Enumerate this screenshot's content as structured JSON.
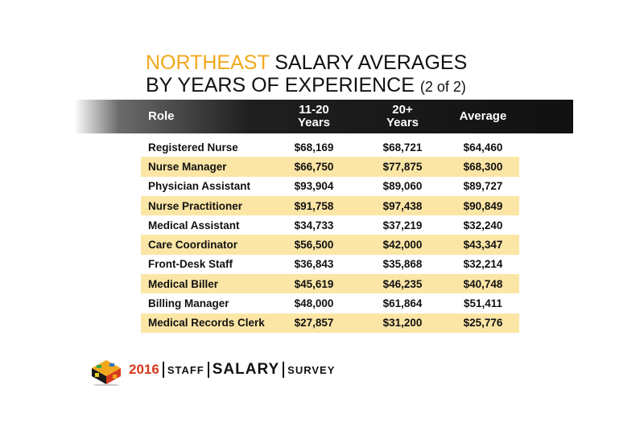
{
  "title": {
    "highlight": "NORTHEAST",
    "line1_rest": "SALARY AVERAGES",
    "line2": "BY YEARS OF EXPERIENCE",
    "part": "(2 of 2)"
  },
  "table": {
    "headers": {
      "role": "Role",
      "col1_line1": "11-20",
      "col1_line2": "Years",
      "col2_line1": "20+",
      "col2_line2": "Years",
      "col3": "Average"
    },
    "rows": [
      {
        "role": "Registered Nurse",
        "c1": "$68,169",
        "c2": "$68,721",
        "c3": "$64,460"
      },
      {
        "role": "Nurse Manager",
        "c1": "$66,750",
        "c2": "$77,875",
        "c3": "$68,300"
      },
      {
        "role": "Physician Assistant",
        "c1": "$93,904",
        "c2": "$89,060",
        "c3": "$89,727"
      },
      {
        "role": "Nurse Practitioner",
        "c1": "$91,758",
        "c2": "$97,438",
        "c3": "$90,849"
      },
      {
        "role": "Medical Assistant",
        "c1": "$34,733",
        "c2": "$37,219",
        "c3": "$32,240"
      },
      {
        "role": "Care Coordinator",
        "c1": "$56,500",
        "c2": "$42,000",
        "c3": "$43,347"
      },
      {
        "role": "Front-Desk Staff",
        "c1": "$36,843",
        "c2": "$35,868",
        "c3": "$32,214"
      },
      {
        "role": "Medical Biller",
        "c1": "$45,619",
        "c2": "$46,235",
        "c3": "$40,748"
      },
      {
        "role": "Billing Manager",
        "c1": "$48,000",
        "c2": "$61,864",
        "c3": "$51,411"
      },
      {
        "role": "Medical Records Clerk",
        "c1": "$27,857",
        "c2": "$31,200",
        "c3": "$25,776"
      }
    ]
  },
  "logo": {
    "year": "2016",
    "word1": "STAFF",
    "word2": "SALARY",
    "word3": "SURVEY"
  },
  "colors": {
    "accent": "#f2a81c",
    "row_highlight": "#fce6a6",
    "header_bg": "#111111"
  }
}
